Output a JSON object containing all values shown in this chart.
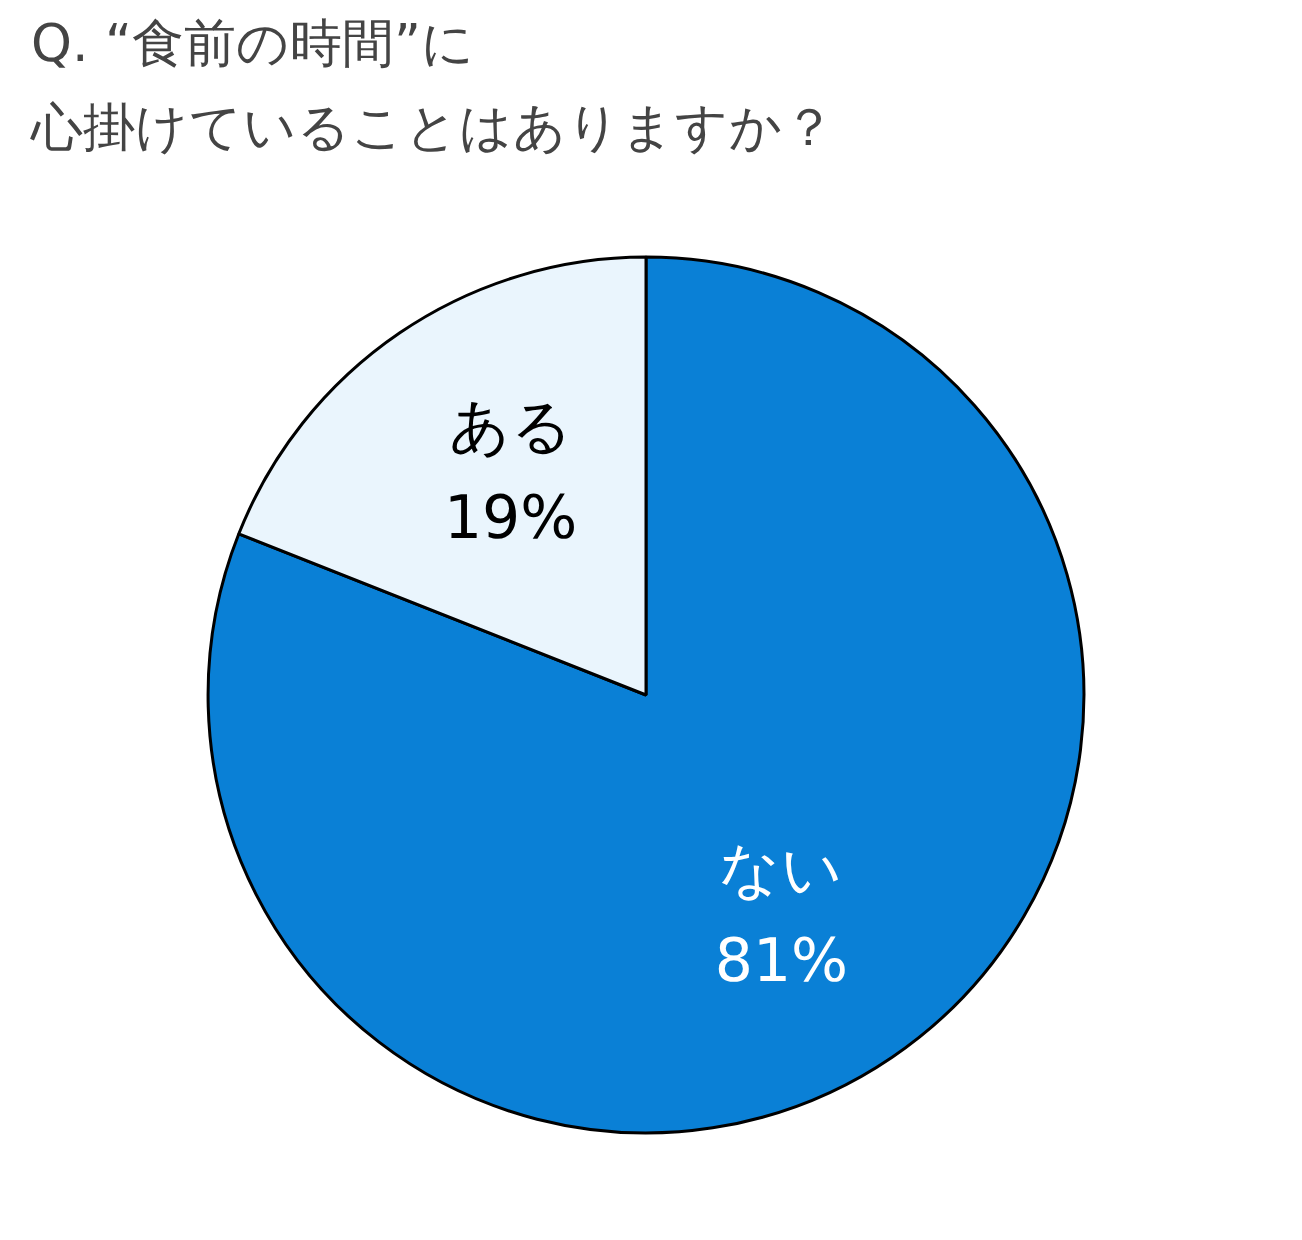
{
  "chart_data": {
    "type": "pie",
    "title": "Q. “食前の時間”に",
    "subtitle": "心掛けていることはありますか？",
    "categories": [
      "ない",
      "ある"
    ],
    "values": [
      81,
      19
    ],
    "value_labels": [
      "81%",
      "19%"
    ],
    "colors": [
      "#0a80d6",
      "#eaf5fd"
    ]
  }
}
